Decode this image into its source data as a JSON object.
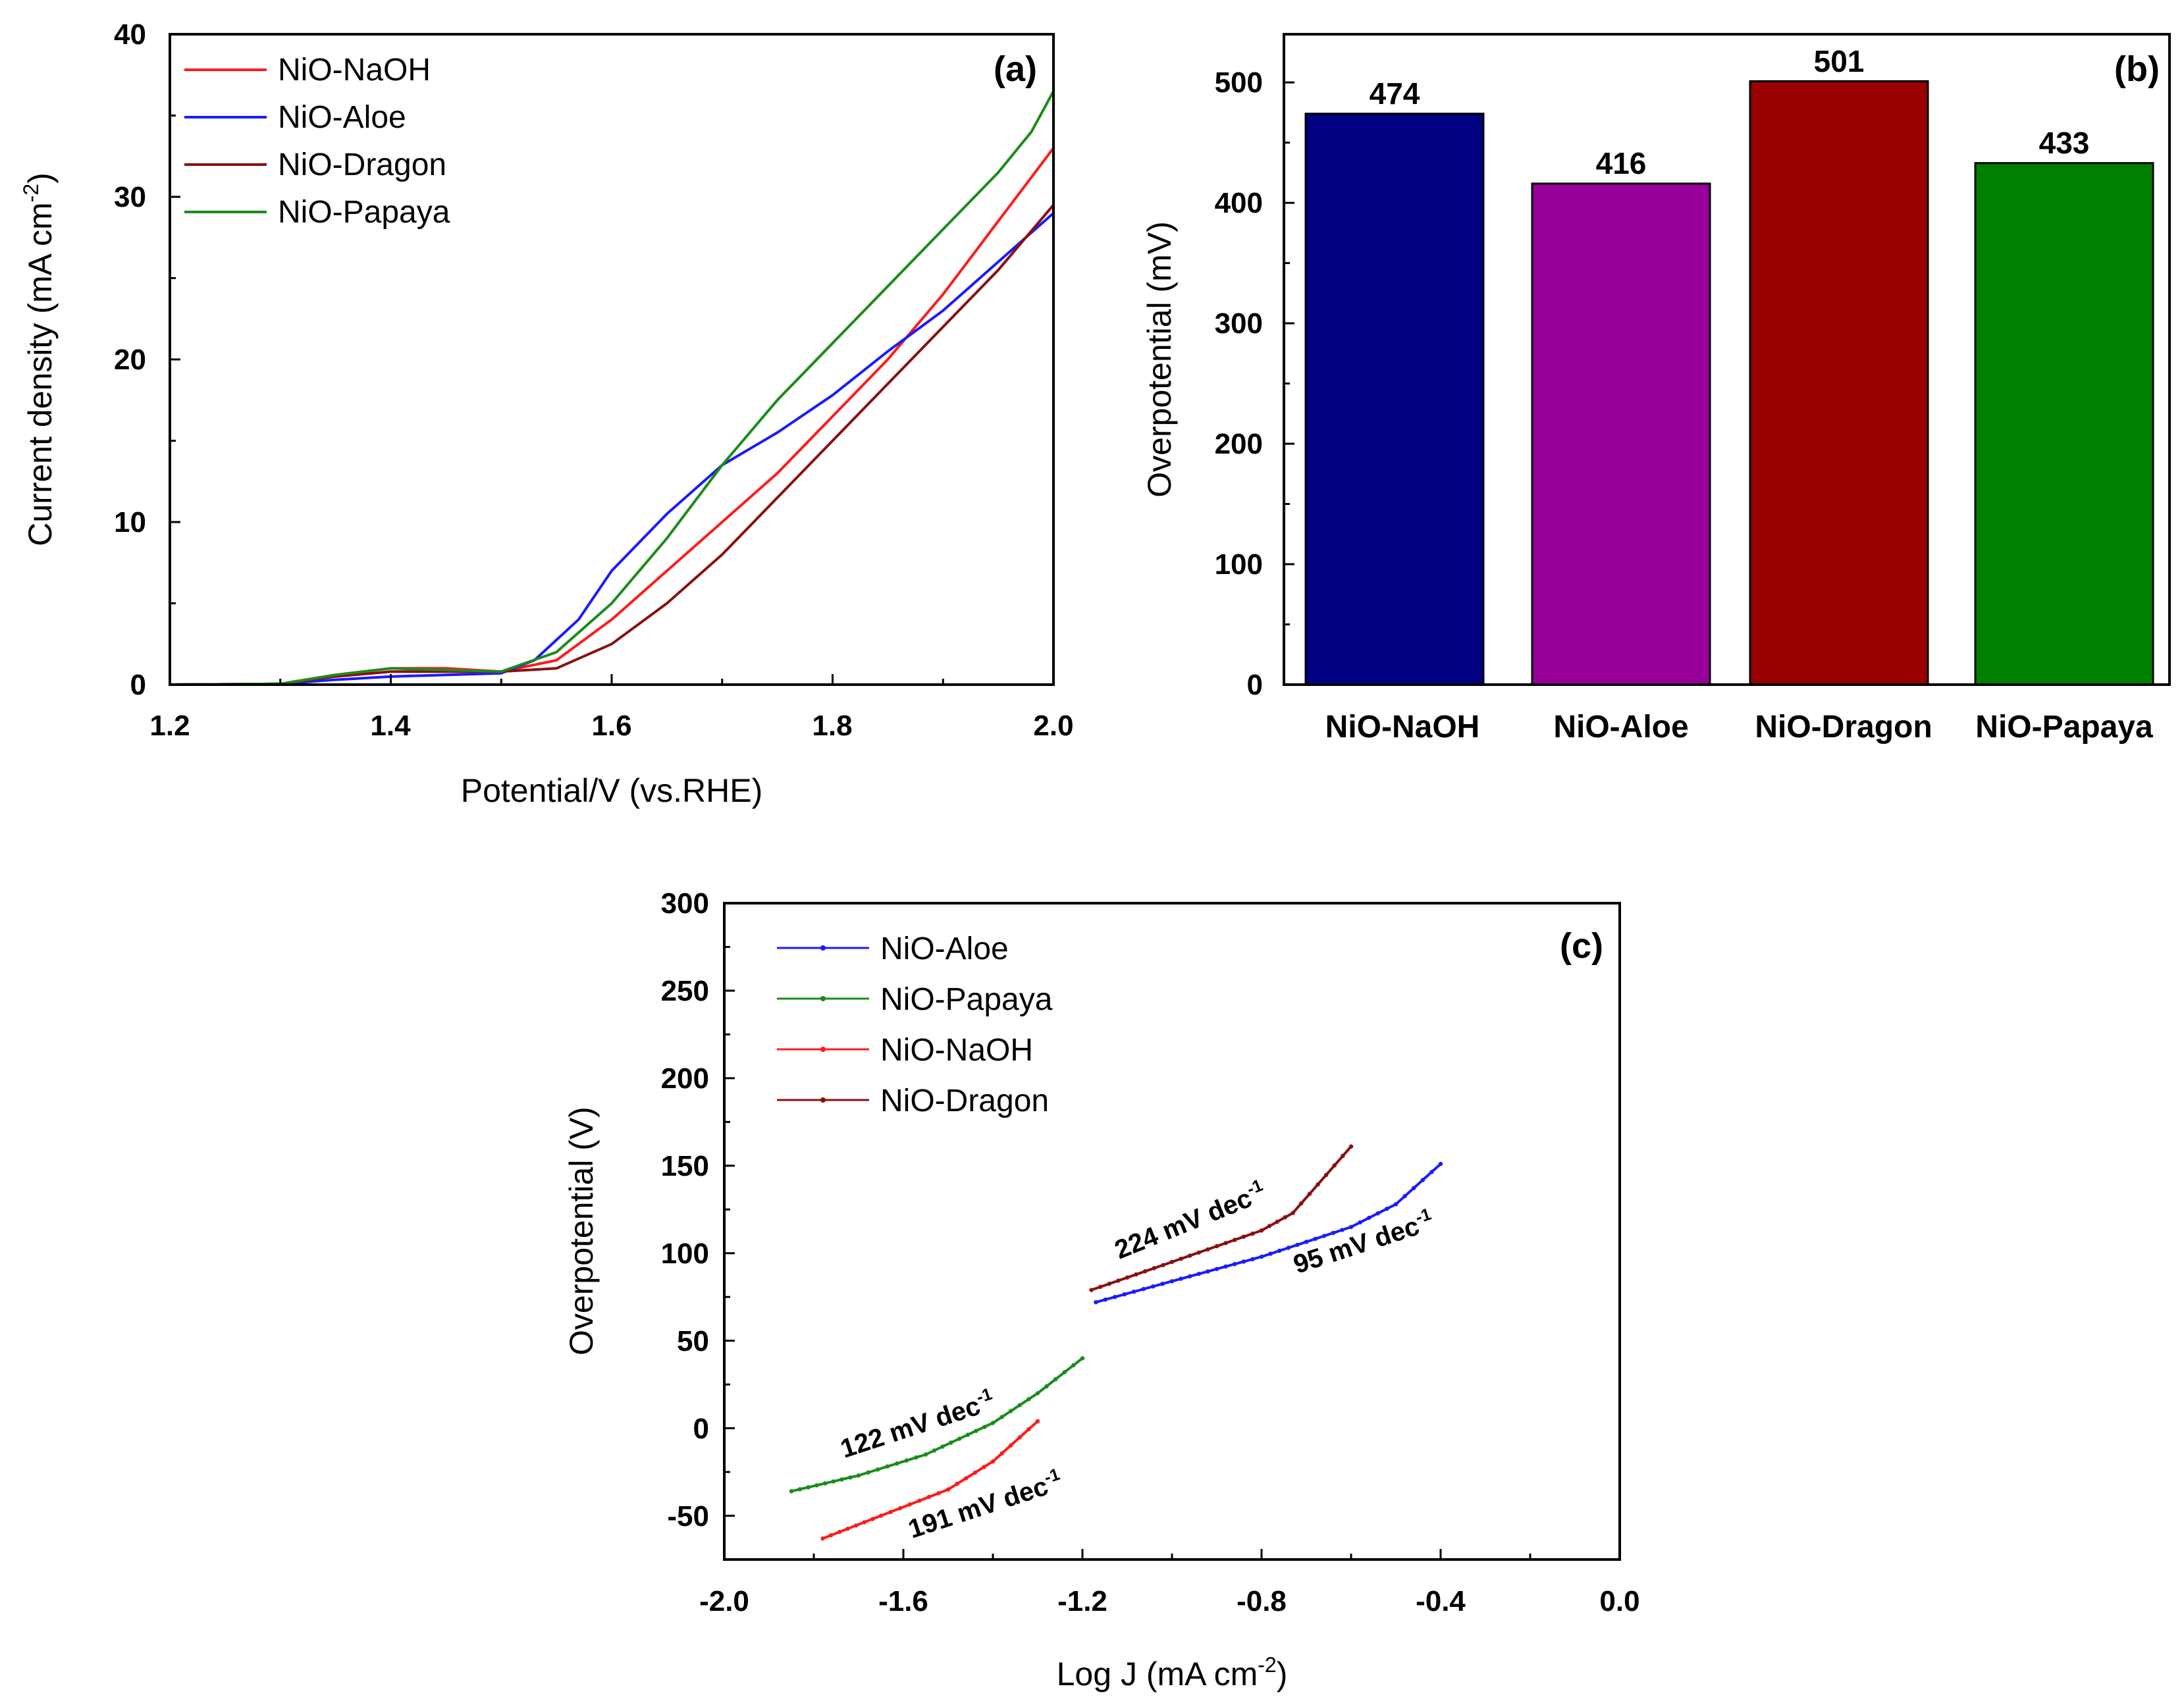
{
  "colors": {
    "red": "#ff1a1a",
    "blue": "#1a1aff",
    "darkred": "#8b0f0f",
    "green": "#1a8c1a",
    "navy": "#000080",
    "purple": "#990099",
    "barred": "#990000",
    "bargreen": "#008000"
  },
  "chart_data": [
    {
      "panel": "(a)",
      "type": "line",
      "xlabel": "Potential/V (vs.RHE)",
      "ylabel": {
        "main": "Current density (mA cm",
        "sup": "-2",
        "close": ")"
      },
      "xlim": [
        1.2,
        2.0
      ],
      "ylim": [
        0,
        40
      ],
      "xticks": [
        1.2,
        1.4,
        1.6,
        1.8,
        2.0
      ],
      "xtick_labels": [
        "1.2",
        "1.4",
        "1.6",
        "1.8",
        "2.0"
      ],
      "yticks": [
        0,
        10,
        20,
        30,
        40
      ],
      "ytick_labels": [
        "0",
        "10",
        "20",
        "30",
        "40"
      ],
      "legend": [
        "NiO-NaOH",
        "NiO-Aloe",
        "NiO-Dragon",
        "NiO-Papaya"
      ],
      "series": [
        {
          "name": "NiO-NaOH",
          "color": "#ff1a1a",
          "points": [
            [
              1.2,
              0
            ],
            [
              1.3,
              0.05
            ],
            [
              1.35,
              0.6
            ],
            [
              1.4,
              1.0
            ],
            [
              1.45,
              1.0
            ],
            [
              1.5,
              0.8
            ],
            [
              1.55,
              1.5
            ],
            [
              1.6,
              4.0
            ],
            [
              1.65,
              7.0
            ],
            [
              1.7,
              10.0
            ],
            [
              1.75,
              13.0
            ],
            [
              1.8,
              16.5
            ],
            [
              1.85,
              20.0
            ],
            [
              1.9,
              24.0
            ],
            [
              1.95,
              28.5
            ],
            [
              2.0,
              33.0
            ]
          ]
        },
        {
          "name": "NiO-Aloe",
          "color": "#1a1aff",
          "points": [
            [
              1.2,
              0
            ],
            [
              1.3,
              0.05
            ],
            [
              1.35,
              0.3
            ],
            [
              1.4,
              0.5
            ],
            [
              1.45,
              0.6
            ],
            [
              1.5,
              0.7
            ],
            [
              1.53,
              1.5
            ],
            [
              1.57,
              4.0
            ],
            [
              1.6,
              7.0
            ],
            [
              1.65,
              10.5
            ],
            [
              1.7,
              13.5
            ],
            [
              1.75,
              15.5
            ],
            [
              1.8,
              17.8
            ],
            [
              1.85,
              20.5
            ],
            [
              1.9,
              23.0
            ],
            [
              1.95,
              26.0
            ],
            [
              2.0,
              29.0
            ]
          ]
        },
        {
          "name": "NiO-Dragon",
          "color": "#8b0f0f",
          "points": [
            [
              1.2,
              0
            ],
            [
              1.3,
              0.05
            ],
            [
              1.35,
              0.5
            ],
            [
              1.4,
              0.8
            ],
            [
              1.45,
              0.8
            ],
            [
              1.5,
              0.8
            ],
            [
              1.55,
              1.0
            ],
            [
              1.6,
              2.5
            ],
            [
              1.65,
              5.0
            ],
            [
              1.7,
              8.0
            ],
            [
              1.75,
              11.5
            ],
            [
              1.8,
              15.0
            ],
            [
              1.85,
              18.5
            ],
            [
              1.9,
              22.0
            ],
            [
              1.95,
              25.5
            ],
            [
              2.0,
              29.5
            ]
          ]
        },
        {
          "name": "NiO-Papaya",
          "color": "#1a8c1a",
          "points": [
            [
              1.2,
              0
            ],
            [
              1.3,
              0.05
            ],
            [
              1.35,
              0.6
            ],
            [
              1.4,
              1.0
            ],
            [
              1.45,
              0.9
            ],
            [
              1.5,
              0.8
            ],
            [
              1.55,
              2.0
            ],
            [
              1.6,
              5.0
            ],
            [
              1.65,
              9.0
            ],
            [
              1.7,
              13.5
            ],
            [
              1.75,
              17.5
            ],
            [
              1.8,
              21.0
            ],
            [
              1.85,
              24.5
            ],
            [
              1.9,
              28.0
            ],
            [
              1.95,
              31.5
            ],
            [
              1.98,
              34.0
            ],
            [
              2.0,
              36.5
            ]
          ]
        }
      ]
    },
    {
      "panel": "(b)",
      "type": "bar",
      "ylabel": "Overpotential (mV)",
      "ylim": [
        0,
        540
      ],
      "yticks": [
        0,
        100,
        200,
        300,
        400,
        500
      ],
      "ytick_labels": [
        "0",
        "100",
        "200",
        "300",
        "400",
        "500"
      ],
      "categories": [
        "NiO-NaOH",
        "NiO-Aloe",
        "NiO-Dragon",
        "NiO-Papaya"
      ],
      "values": [
        474,
        416,
        501,
        433
      ],
      "value_labels": [
        "474",
        "416",
        "501",
        "433"
      ],
      "bar_colors": [
        "#000080",
        "#990099",
        "#990000",
        "#008000"
      ]
    },
    {
      "panel": "(c)",
      "type": "line",
      "xlabel": {
        "main": "Log J (mA cm",
        "sup": "-2",
        "close": ")"
      },
      "ylabel": "Overpotential (V)",
      "xlim": [
        -2.0,
        0.0
      ],
      "ylim": [
        -75,
        300
      ],
      "xticks": [
        -2.0,
        -1.6,
        -1.2,
        -0.8,
        -0.4,
        0.0
      ],
      "xtick_labels": [
        "-2.0",
        "-1.6",
        "-1.2",
        "-0.8",
        "-0.4",
        "0.0"
      ],
      "yticks": [
        -50,
        0,
        50,
        100,
        150,
        200,
        250,
        300
      ],
      "ytick_labels": [
        "-50",
        "0",
        "50",
        "100",
        "150",
        "200",
        "250",
        "300"
      ],
      "legend": [
        "NiO-Aloe",
        "NiO-Papaya",
        "NiO-NaOH",
        "NiO-Dragon"
      ],
      "series": [
        {
          "name": "NiO-Aloe",
          "color": "#1a1aff",
          "points": [
            [
              -1.17,
              72
            ],
            [
              -1.0,
              84
            ],
            [
              -0.8,
              98
            ],
            [
              -0.6,
              115
            ],
            [
              -0.5,
              128
            ],
            [
              -0.4,
              151
            ]
          ]
        },
        {
          "name": "NiO-Papaya",
          "color": "#1a8c1a",
          "points": [
            [
              -1.85,
              -36
            ],
            [
              -1.7,
              -27
            ],
            [
              -1.55,
              -15
            ],
            [
              -1.4,
              3
            ],
            [
              -1.3,
              20
            ],
            [
              -1.2,
              40
            ]
          ]
        },
        {
          "name": "NiO-NaOH",
          "color": "#ff1a1a",
          "points": [
            [
              -1.78,
              -63
            ],
            [
              -1.65,
              -50
            ],
            [
              -1.5,
              -35
            ],
            [
              -1.4,
              -19
            ],
            [
              -1.3,
              4
            ]
          ]
        },
        {
          "name": "NiO-Dragon",
          "color": "#8b0f0f",
          "points": [
            [
              -1.18,
              79
            ],
            [
              -1.0,
              95
            ],
            [
              -0.8,
              113
            ],
            [
              -0.73,
              123
            ],
            [
              -0.6,
              161
            ]
          ]
        }
      ],
      "annotations": [
        {
          "text": "224 mV dec",
          "sup": "-1"
        },
        {
          "text": "95 mV dec",
          "sup": "-1"
        },
        {
          "text": "122 mV dec",
          "sup": "-1"
        },
        {
          "text": "191 mV dec",
          "sup": "-1"
        }
      ]
    }
  ]
}
